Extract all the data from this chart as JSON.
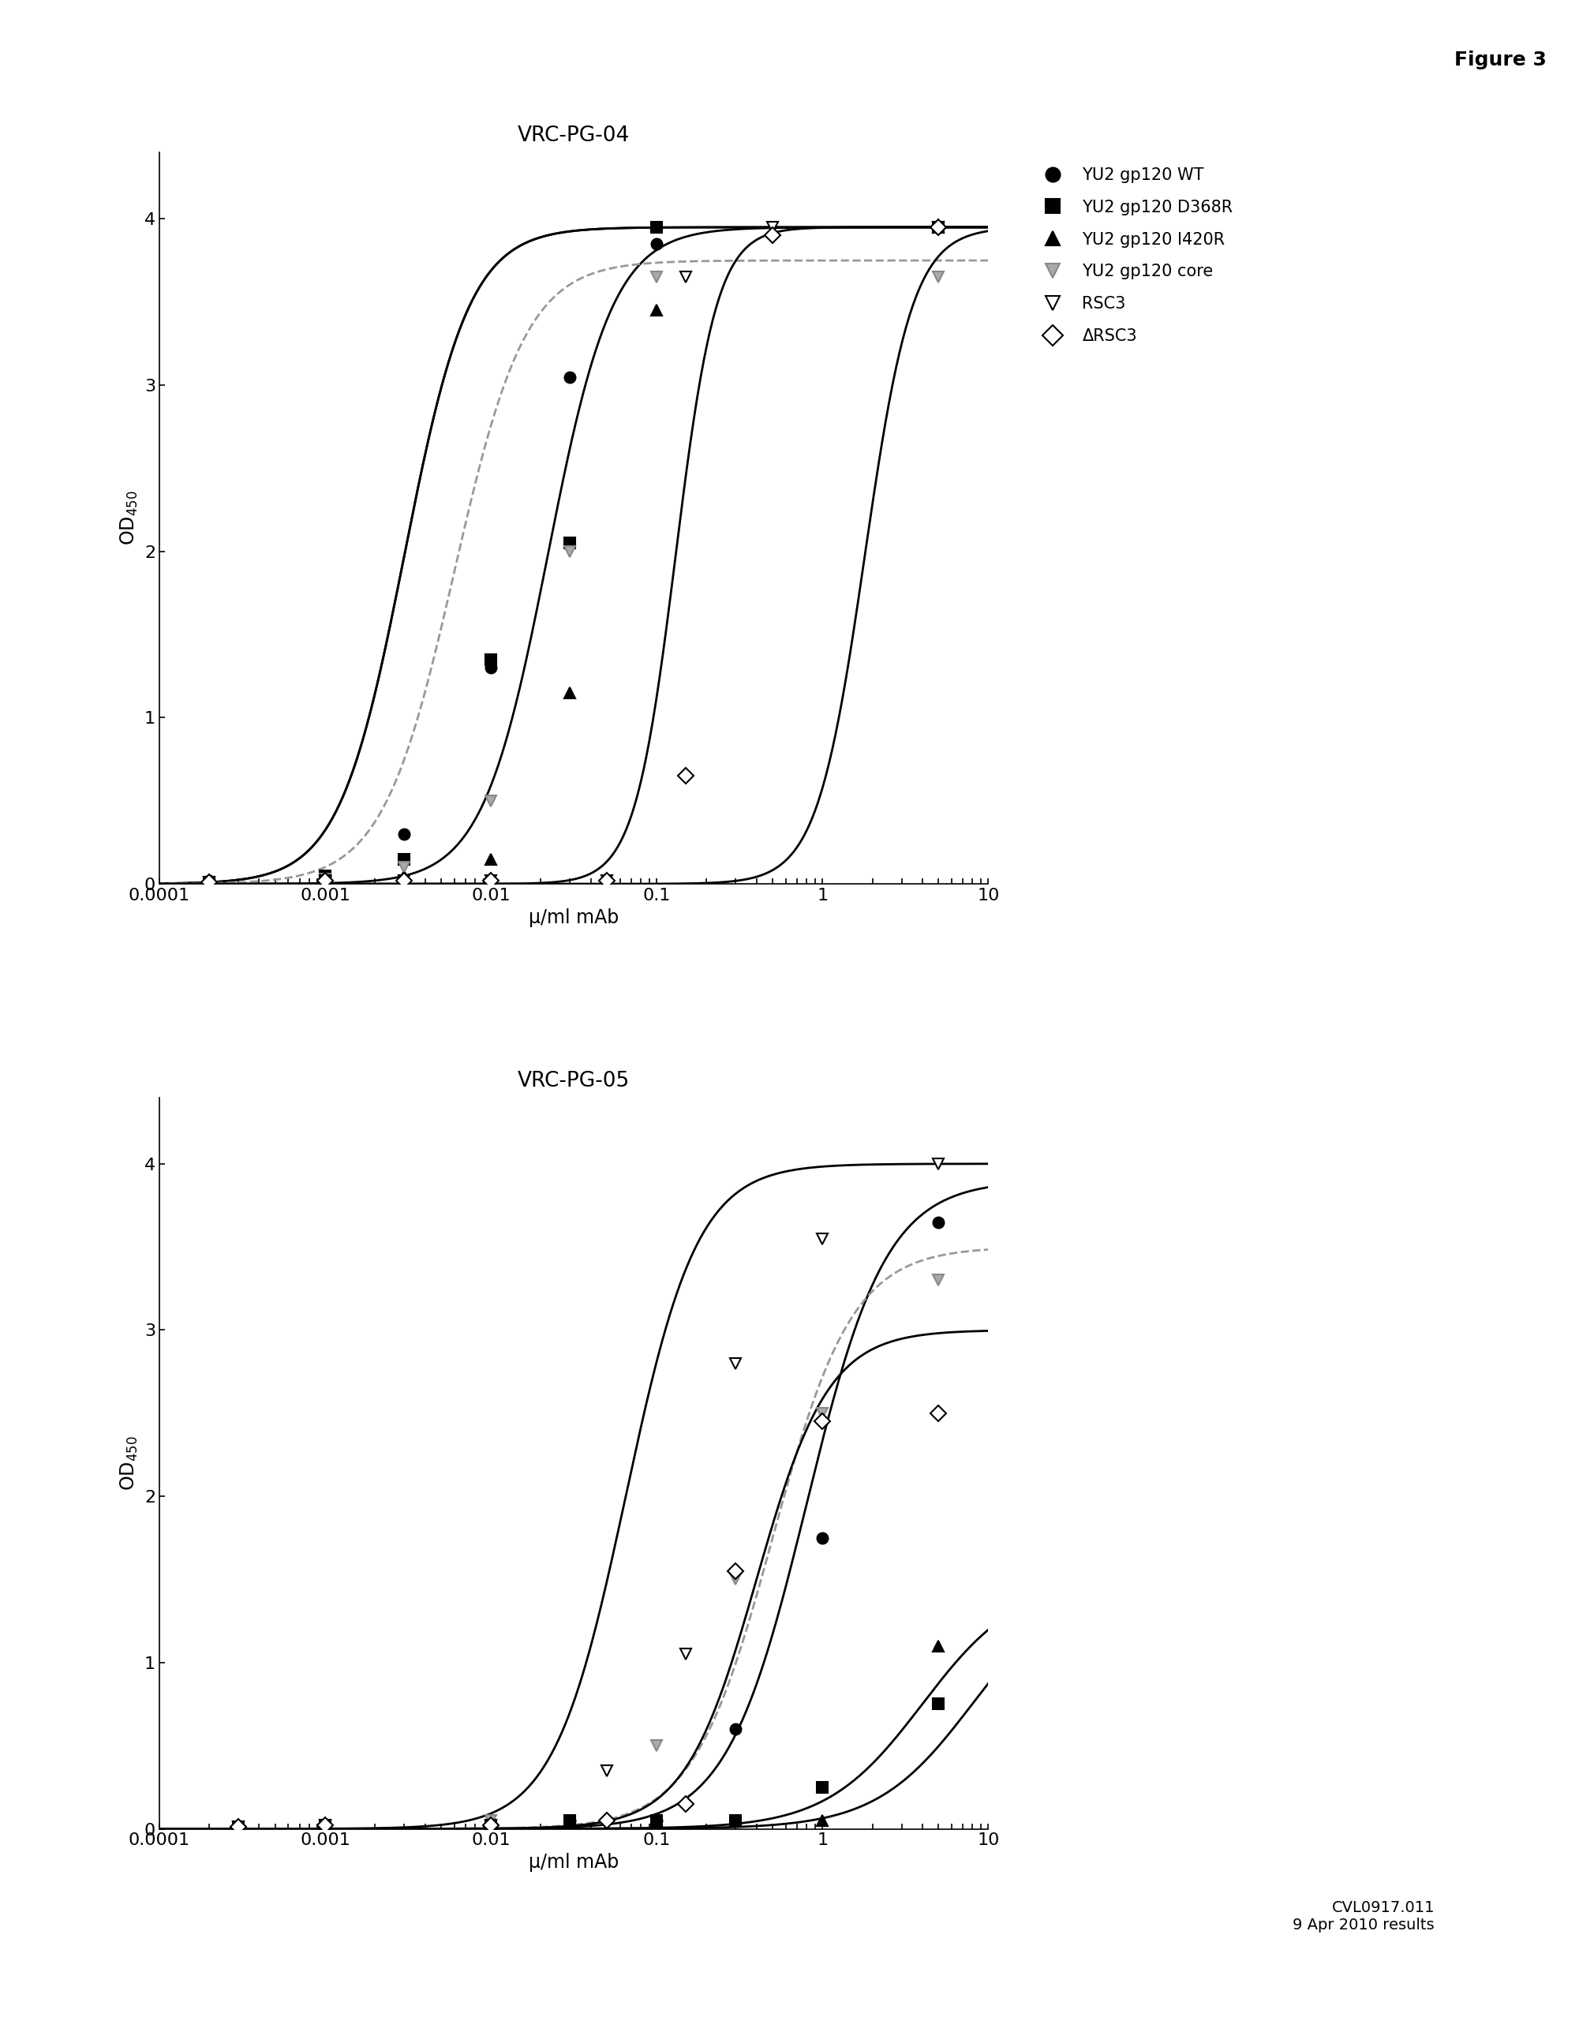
{
  "figure_label": "Figure 3",
  "panel1_title": "VRC-PG-04",
  "panel2_title": "VRC-PG-05",
  "xlabel": "μ/ml mAb",
  "xlim": [
    0.0001,
    10
  ],
  "ylim": [
    0,
    4.4
  ],
  "yticks": [
    0,
    1,
    2,
    3,
    4
  ],
  "xticks": [
    0.0001,
    0.001,
    0.01,
    0.1,
    1,
    10
  ],
  "xticklabels": [
    "0.0001",
    "0.001",
    "0.01",
    "0.1",
    "1",
    "10"
  ],
  "footer_text": "CVL0917.011\n9 Apr 2010 results",
  "panel1_series": {
    "YU2_WT": {
      "ec50": 0.003,
      "hill": 2.2,
      "top": 3.95,
      "color": "#000000",
      "marker": "o",
      "filled": true,
      "style": "solid",
      "curve_color": "#000000"
    },
    "YU2_D368R": {
      "ec50": 0.003,
      "hill": 2.2,
      "top": 3.95,
      "color": "#000000",
      "marker": "s",
      "filled": true,
      "style": "solid",
      "curve_color": "#000000"
    },
    "YU2_I420R": {
      "ec50": 0.022,
      "hill": 2.2,
      "top": 3.95,
      "color": "#000000",
      "marker": "^",
      "filled": true,
      "style": "solid",
      "curve_color": "#000000"
    },
    "YU2_core": {
      "ec50": 0.006,
      "hill": 2.0,
      "top": 3.75,
      "color": "#999999",
      "marker": "v",
      "filled": true,
      "style": "dashed",
      "curve_color": "#999999"
    },
    "RSC3": {
      "ec50": 0.13,
      "hill": 3.5,
      "top": 3.95,
      "color": "#000000",
      "marker": "v",
      "filled": false,
      "style": "solid",
      "curve_color": "#000000"
    },
    "dRSC3": {
      "ec50": 1.8,
      "hill": 3.0,
      "top": 3.95,
      "color": "#000000",
      "marker": "D",
      "filled": false,
      "style": "solid",
      "curve_color": "#000000"
    }
  },
  "panel1_data": {
    "YU2_WT": [
      0.0002,
      0.001,
      0.003,
      0.01,
      0.03,
      0.1,
      5.0
    ],
    "YU2_WT_y": [
      0.02,
      0.05,
      0.3,
      1.3,
      3.05,
      3.85,
      3.95
    ],
    "YU2_D368R": [
      0.0002,
      0.001,
      0.003,
      0.01,
      0.03,
      0.1,
      5.0
    ],
    "YU2_D368R_y": [
      0.01,
      0.05,
      0.15,
      1.35,
      2.05,
      3.95,
      3.95
    ],
    "YU2_I420R": [
      0.0002,
      0.001,
      0.003,
      0.01,
      0.03,
      0.1,
      5.0
    ],
    "YU2_I420R_y": [
      0.01,
      0.02,
      0.05,
      0.15,
      1.15,
      3.45,
      3.95
    ],
    "YU2_core": [
      0.001,
      0.003,
      0.01,
      0.03,
      0.1,
      5.0
    ],
    "YU2_core_y": [
      0.03,
      0.1,
      0.5,
      2.0,
      3.65,
      3.65
    ],
    "RSC3": [
      0.0002,
      0.001,
      0.003,
      0.01,
      0.05,
      0.15,
      0.5,
      5.0
    ],
    "RSC3_y": [
      0.01,
      0.02,
      0.02,
      0.02,
      0.02,
      3.65,
      3.95,
      3.95
    ],
    "dRSC3": [
      0.0002,
      0.001,
      0.003,
      0.01,
      0.05,
      0.15,
      0.5,
      5.0
    ],
    "dRSC3_y": [
      0.01,
      0.02,
      0.02,
      0.02,
      0.02,
      0.65,
      3.9,
      3.95
    ]
  },
  "panel2_series": {
    "YU2_WT": {
      "ec50": 0.8,
      "hill": 1.8,
      "top": 3.9,
      "color": "#000000",
      "marker": "o",
      "filled": true,
      "style": "solid",
      "curve_color": "#000000"
    },
    "YU2_D368R": {
      "ec50": 4.0,
      "hill": 1.5,
      "top": 1.5,
      "color": "#000000",
      "marker": "s",
      "filled": true,
      "style": "solid",
      "curve_color": "#000000"
    },
    "YU2_I420R": {
      "ec50": 8.0,
      "hill": 1.5,
      "top": 1.5,
      "color": "#000000",
      "marker": "^",
      "filled": true,
      "style": "solid",
      "curve_color": "#000000"
    },
    "YU2_core": {
      "ec50": 0.5,
      "hill": 1.8,
      "top": 3.5,
      "color": "#999999",
      "marker": "v",
      "filled": true,
      "style": "dashed",
      "curve_color": "#999999"
    },
    "RSC3": {
      "ec50": 0.065,
      "hill": 2.0,
      "top": 4.0,
      "color": "#000000",
      "marker": "v",
      "filled": false,
      "style": "solid",
      "curve_color": "#000000"
    },
    "dRSC3": {
      "ec50": 0.4,
      "hill": 2.0,
      "top": 3.0,
      "color": "#000000",
      "marker": "D",
      "filled": false,
      "style": "solid",
      "curve_color": "#000000"
    }
  },
  "panel2_data": {
    "YU2_WT": [
      0.0003,
      0.001,
      0.01,
      0.03,
      0.1,
      0.3,
      1.0,
      5.0
    ],
    "YU2_WT_y": [
      0.01,
      0.02,
      0.02,
      0.05,
      0.05,
      0.6,
      1.75,
      3.65
    ],
    "YU2_D368R": [
      0.0003,
      0.001,
      0.01,
      0.03,
      0.1,
      0.3,
      1.0,
      5.0
    ],
    "YU2_D368R_y": [
      0.01,
      0.02,
      0.02,
      0.05,
      0.05,
      0.05,
      0.25,
      0.75
    ],
    "YU2_I420R": [
      0.0003,
      0.001,
      0.01,
      0.03,
      0.1,
      0.3,
      1.0,
      5.0
    ],
    "YU2_I420R_y": [
      0.01,
      0.02,
      0.02,
      0.05,
      0.05,
      0.05,
      0.05,
      1.1
    ],
    "YU2_core": [
      0.0003,
      0.001,
      0.01,
      0.1,
      0.3,
      1.0,
      5.0
    ],
    "YU2_core_y": [
      0.01,
      0.02,
      0.05,
      0.5,
      1.5,
      2.5,
      3.3
    ],
    "RSC3": [
      0.0003,
      0.001,
      0.01,
      0.05,
      0.15,
      0.3,
      1.0,
      5.0
    ],
    "RSC3_y": [
      0.01,
      0.02,
      0.02,
      0.35,
      1.05,
      2.8,
      3.55,
      4.0
    ],
    "dRSC3": [
      0.0003,
      0.001,
      0.01,
      0.05,
      0.15,
      0.3,
      1.0,
      5.0
    ],
    "dRSC3_y": [
      0.01,
      0.02,
      0.02,
      0.05,
      0.15,
      1.55,
      2.45,
      2.5
    ]
  },
  "legend_entries": [
    {
      "label": "YU2 gp120 WT",
      "marker": "o",
      "filled": true,
      "color": "#000000"
    },
    {
      "label": "YU2 gp120 D368R",
      "marker": "s",
      "filled": true,
      "color": "#000000"
    },
    {
      "label": "YU2 gp120 I420R",
      "marker": "^",
      "filled": true,
      "color": "#000000"
    },
    {
      "label": "YU2 gp120 core",
      "marker": "v",
      "filled": true,
      "color": "#999999"
    },
    {
      "label": "RSC3",
      "marker": "v",
      "filled": false,
      "color": "#000000"
    },
    {
      "label": "ΔRSC3",
      "marker": "D",
      "filled": false,
      "color": "#000000"
    }
  ]
}
